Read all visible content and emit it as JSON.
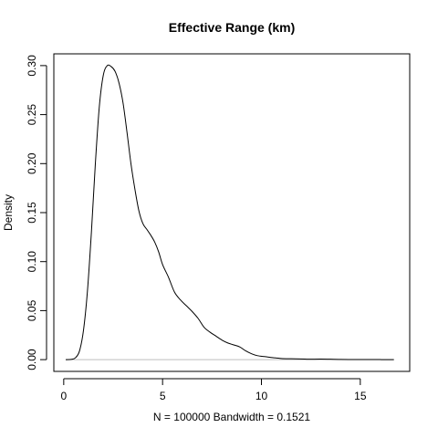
{
  "chart_data": {
    "type": "line",
    "title": "Effective Range (km)",
    "xlabel": "N = 100000   Bandwidth = 0.1521",
    "ylabel": "Density",
    "xlim": [
      -0.5,
      17.5
    ],
    "ylim": [
      -0.012,
      0.312
    ],
    "x_ticks": [
      0,
      5,
      10,
      15
    ],
    "x_tick_labels": [
      "0",
      "5",
      "10",
      "15"
    ],
    "y_ticks": [
      0.0,
      0.05,
      0.1,
      0.15,
      0.2,
      0.25,
      0.3
    ],
    "y_tick_labels": [
      "0.00",
      "0.05",
      "0.10",
      "0.15",
      "0.20",
      "0.25",
      "0.30"
    ],
    "baseline": 0,
    "series": [
      {
        "name": "density",
        "x": [
          0.1,
          0.4,
          0.6,
          0.8,
          1.0,
          1.2,
          1.4,
          1.6,
          1.8,
          2.0,
          2.2,
          2.4,
          2.6,
          2.8,
          3.0,
          3.2,
          3.4,
          3.6,
          3.8,
          4.0,
          4.2,
          4.4,
          4.6,
          4.8,
          5.0,
          5.3,
          5.6,
          5.9,
          6.2,
          6.5,
          6.8,
          7.1,
          7.4,
          7.7,
          8.0,
          8.3,
          8.6,
          8.9,
          9.2,
          9.5,
          9.8,
          10.2,
          10.6,
          11.0,
          11.5,
          12.0,
          12.5,
          13.0,
          14.0,
          15.0,
          16.0,
          16.7
        ],
        "y": [
          0.0,
          0.0003,
          0.002,
          0.009,
          0.03,
          0.07,
          0.13,
          0.2,
          0.258,
          0.29,
          0.3,
          0.299,
          0.294,
          0.282,
          0.262,
          0.232,
          0.2,
          0.174,
          0.152,
          0.139,
          0.133,
          0.127,
          0.12,
          0.11,
          0.097,
          0.084,
          0.069,
          0.061,
          0.055,
          0.049,
          0.042,
          0.033,
          0.028,
          0.024,
          0.02,
          0.017,
          0.015,
          0.013,
          0.009,
          0.006,
          0.004,
          0.003,
          0.002,
          0.0012,
          0.0009,
          0.0007,
          0.0004,
          0.0006,
          0.0002,
          0.0001,
          5e-05,
          0.0
        ]
      }
    ]
  }
}
